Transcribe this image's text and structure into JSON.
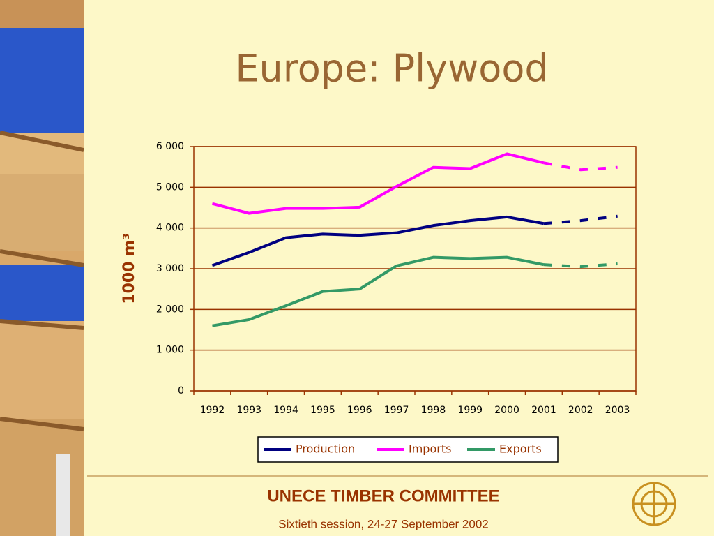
{
  "chart_data": {
    "type": "line",
    "title": "Europe: Plywood",
    "y_label": "1000 m³",
    "categories": [
      "1992",
      "1993",
      "1994",
      "1995",
      "1996",
      "1997",
      "1998",
      "1999",
      "2000",
      "2001",
      "2002",
      "2003"
    ],
    "dashed_from": "2001",
    "series": [
      {
        "name": "Production",
        "color": "#000080",
        "values": [
          3080,
          3400,
          3760,
          3850,
          3820,
          3880,
          4060,
          4180,
          4270,
          4110,
          4180,
          4290
        ]
      },
      {
        "name": "Imports",
        "color": "#ff00ff",
        "values": [
          4600,
          4360,
          4480,
          4480,
          4510,
          5020,
          5490,
          5460,
          5820,
          5600,
          5430,
          5490
        ]
      },
      {
        "name": "Exports",
        "color": "#339966",
        "values": [
          1600,
          1750,
          2090,
          2440,
          2500,
          3070,
          3280,
          3250,
          3280,
          3100,
          3050,
          3120
        ]
      }
    ],
    "ylim": [
      0,
      6000
    ],
    "yticks": [
      0,
      {
        "value": 1000,
        "label": "1 000"
      },
      {
        "value": 2000,
        "label": "2 000"
      },
      {
        "value": 3000,
        "label": "3 000"
      },
      {
        "value": 4000,
        "label": "4 000"
      },
      {
        "value": 5000,
        "label": "5 000"
      },
      {
        "value": 6000,
        "label": "6 000"
      }
    ],
    "grid": true,
    "legend": "bottom"
  },
  "footer": {
    "title": "UNECE TIMBER COMMITTEE",
    "subtitle": "Sixtieth session, 24-27 September 2002"
  }
}
